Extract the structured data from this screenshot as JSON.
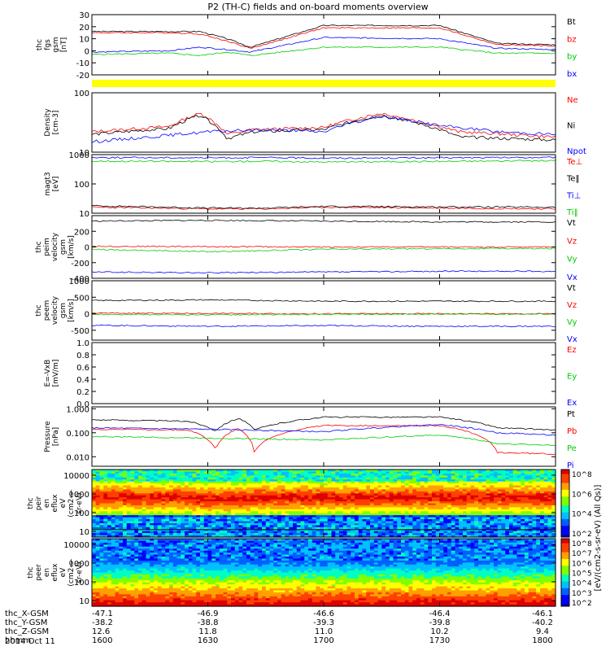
{
  "title": "P2 (TH-C) fields and on-board moments overview",
  "date_label": "2014 Oct 11",
  "colors": {
    "black": "#000000",
    "red": "#ff0000",
    "green": "#00cc00",
    "blue": "#0000ff",
    "yellow": "#ffff00"
  },
  "time_axis": {
    "rows": [
      {
        "label": "thc_X-GSM",
        "values": [
          "-47.1",
          "-46.9",
          "-46.6",
          "-46.4",
          "-46.1"
        ]
      },
      {
        "label": "thc_Y-GSM",
        "values": [
          "-38.2",
          "-38.8",
          "-39.3",
          "-39.8",
          "-40.2"
        ]
      },
      {
        "label": "thc_Z-GSM",
        "values": [
          "12.6",
          "11.8",
          "11.0",
          "10.2",
          "9.4"
        ]
      },
      {
        "label": "hhmm",
        "values": [
          "1600",
          "1630",
          "1700",
          "1730",
          "1800"
        ]
      }
    ]
  },
  "colorbar": {
    "upper": {
      "labels": [
        "10^8",
        "10^6",
        "10^4",
        "10^2"
      ]
    },
    "lower": {
      "labels": [
        "10^8",
        "10^7",
        "10^6",
        "10^5",
        "10^4",
        "10^3",
        "10^2"
      ]
    },
    "title": "[eV/(cm2-s-sr-eV) (All Qs)]"
  },
  "chart_data": [
    {
      "type": "line",
      "ylabel": [
        "thc",
        "fgs",
        "gsm",
        "[nT]"
      ],
      "yticks": [
        "30",
        "20",
        "10",
        "0",
        "-10",
        "-20"
      ],
      "ylim": [
        -20,
        30
      ],
      "legend": [
        "Bt",
        "bz",
        "by",
        "bx"
      ],
      "series": [
        {
          "name": "Bt",
          "color": "#000000",
          "x": [
            "16:00",
            "16:20",
            "16:28",
            "16:35",
            "16:41",
            "17:00",
            "17:30",
            "17:45",
            "18:00"
          ],
          "values": [
            16,
            16,
            16,
            10,
            3,
            21,
            21,
            6,
            5
          ]
        },
        {
          "name": "bz",
          "color": "#ff0000",
          "x": [
            "16:00",
            "16:20",
            "16:28",
            "16:35",
            "16:41",
            "17:00",
            "17:30",
            "17:45",
            "18:00"
          ],
          "values": [
            15,
            15,
            14,
            8,
            2,
            19,
            19,
            5,
            4
          ]
        },
        {
          "name": "by",
          "color": "#00cc00",
          "x": [
            "16:00",
            "16:20",
            "16:28",
            "16:35",
            "16:41",
            "17:00",
            "17:30",
            "17:45",
            "18:00"
          ],
          "values": [
            -3,
            -2,
            -4,
            -1,
            -4,
            3,
            3,
            -2,
            -2
          ]
        },
        {
          "name": "bx",
          "color": "#0000ff",
          "x": [
            "16:00",
            "16:20",
            "16:28",
            "16:35",
            "16:41",
            "17:00",
            "17:30",
            "17:45",
            "18:00"
          ],
          "values": [
            -1,
            0,
            3,
            1,
            -1,
            11,
            10,
            2,
            1
          ]
        }
      ]
    },
    {
      "type": "line",
      "ylabel": [
        "Density",
        "[cm-3]"
      ],
      "yticks": [
        "100",
        "10"
      ],
      "ylim": [
        10,
        100
      ],
      "log": true,
      "legend": [
        "Ne",
        "Ni",
        "Npot"
      ],
      "series": [
        {
          "name": "Ne",
          "color": "#ff0000",
          "x": [
            "16:00",
            "16:20",
            "16:28",
            "16:35",
            "16:42",
            "17:00",
            "17:15",
            "17:25",
            "17:35",
            "18:00"
          ],
          "values": [
            22,
            27,
            45,
            20,
            24,
            26,
            45,
            32,
            22,
            18
          ]
        },
        {
          "name": "Ni",
          "color": "#000000",
          "x": [
            "16:00",
            "16:20",
            "16:28",
            "16:35",
            "16:42",
            "17:00",
            "17:15",
            "17:25",
            "17:35",
            "18:00"
          ],
          "values": [
            20,
            25,
            42,
            17,
            22,
            24,
            42,
            30,
            18,
            16
          ]
        },
        {
          "name": "Npot",
          "color": "#0000ff",
          "x": [
            "16:00",
            "16:15",
            "16:30",
            "16:45",
            "17:00",
            "17:15",
            "17:30",
            "17:45",
            "18:00"
          ],
          "values": [
            15,
            18,
            22,
            24,
            22,
            40,
            28,
            22,
            20
          ]
        }
      ]
    },
    {
      "type": "line",
      "ylabel": [
        "magt3",
        "[eV]"
      ],
      "yticks": [
        "1000",
        "100",
        "10"
      ],
      "ylim": [
        10,
        1000
      ],
      "log": true,
      "legend": [
        "Te⊥",
        "Te‖",
        "Ti⊥",
        "Ti‖"
      ],
      "series": [
        {
          "name": "Te⊥",
          "color": "#ff0000",
          "x": [
            "16:00",
            "16:30",
            "16:45",
            "17:00",
            "18:00"
          ],
          "values": [
            16,
            14,
            14,
            16,
            14
          ]
        },
        {
          "name": "Te‖",
          "color": "#000000",
          "x": [
            "16:00",
            "16:30",
            "16:45",
            "17:00",
            "18:00"
          ],
          "values": [
            18,
            15,
            15,
            17,
            16
          ]
        },
        {
          "name": "Ti⊥",
          "color": "#0000ff",
          "x": [
            "16:00",
            "16:30",
            "16:45",
            "17:00",
            "18:00"
          ],
          "values": [
            800,
            780,
            790,
            760,
            800
          ]
        },
        {
          "name": "Ti‖",
          "color": "#00cc00",
          "x": [
            "16:00",
            "16:30",
            "16:45",
            "17:00",
            "18:00"
          ],
          "values": [
            600,
            580,
            600,
            560,
            620
          ]
        }
      ]
    },
    {
      "type": "line",
      "ylabel": [
        "thc",
        "peim",
        "velocity",
        "gsm",
        "[km/s]"
      ],
      "yticks": [
        "200",
        "0",
        "-200",
        "-400"
      ],
      "ylim": [
        -400,
        400
      ],
      "legend": [
        "Vt",
        "Vz",
        "Vy",
        "Vx"
      ],
      "series": [
        {
          "name": "Vt",
          "color": "#000000",
          "x": [
            "16:00",
            "16:30",
            "17:00",
            "17:30",
            "18:00"
          ],
          "values": [
            330,
            340,
            330,
            320,
            320
          ]
        },
        {
          "name": "Vz",
          "color": "#ff0000",
          "x": [
            "16:00",
            "16:30",
            "17:00",
            "17:30",
            "18:00"
          ],
          "values": [
            10,
            5,
            0,
            0,
            0
          ]
        },
        {
          "name": "Vy",
          "color": "#00cc00",
          "x": [
            "16:00",
            "16:30",
            "17:00",
            "17:30",
            "18:00"
          ],
          "values": [
            -30,
            -60,
            -30,
            -20,
            -20
          ]
        },
        {
          "name": "Vx",
          "color": "#0000ff",
          "x": [
            "16:00",
            "16:30",
            "17:00",
            "17:30",
            "18:00"
          ],
          "values": [
            -320,
            -330,
            -320,
            -310,
            -310
          ]
        }
      ]
    },
    {
      "type": "line",
      "ylabel": [
        "thc",
        "peem",
        "velocity",
        "gsm",
        "[km/s]"
      ],
      "yticks": [
        "1000",
        "500",
        "0",
        "-500"
      ],
      "ylim": [
        -800,
        1000
      ],
      "legend": [
        "Vt",
        "Vz",
        "Vy",
        "Vx"
      ],
      "series": [
        {
          "name": "Vt",
          "color": "#000000",
          "x": [
            "16:00",
            "16:30",
            "17:00",
            "17:30",
            "18:00"
          ],
          "values": [
            400,
            420,
            380,
            380,
            380
          ]
        },
        {
          "name": "Vz",
          "color": "#ff0000",
          "x": [
            "16:00",
            "16:30",
            "17:00",
            "17:30",
            "18:00"
          ],
          "values": [
            20,
            10,
            0,
            0,
            0
          ]
        },
        {
          "name": "Vy",
          "color": "#00cc00",
          "x": [
            "16:00",
            "16:30",
            "17:00",
            "17:30",
            "18:00"
          ],
          "values": [
            -20,
            -30,
            -20,
            -10,
            -10
          ]
        },
        {
          "name": "Vx",
          "color": "#0000ff",
          "x": [
            "16:00",
            "16:30",
            "17:00",
            "17:30",
            "18:00"
          ],
          "values": [
            -350,
            -380,
            -360,
            -380,
            -380
          ]
        }
      ]
    },
    {
      "type": "line",
      "ylabel": [
        "E=-VxB",
        "[mV/m]"
      ],
      "yticks": [
        "1.0",
        "0.8",
        "0.6",
        "0.4",
        "0.2",
        "0.0"
      ],
      "ylim": [
        0,
        1
      ],
      "legend": [
        "Ez",
        "Ey",
        "Ex"
      ],
      "series": []
    },
    {
      "type": "line",
      "ylabel": [
        "Pressure",
        "[nPa]"
      ],
      "yticks": [
        "1.000",
        "0.100",
        "0.010"
      ],
      "ylim": [
        0.004,
        1.2
      ],
      "log": true,
      "legend": [
        "Pt",
        "Pb",
        "Pe",
        "Pi"
      ],
      "series": [
        {
          "name": "Pt",
          "color": "#000000",
          "x": [
            "16:00",
            "16:25",
            "16:32",
            "16:38",
            "16:42",
            "17:00",
            "17:30",
            "17:45",
            "18:00"
          ],
          "values": [
            0.35,
            0.3,
            0.12,
            0.4,
            0.13,
            0.45,
            0.45,
            0.16,
            0.13
          ]
        },
        {
          "name": "Pb",
          "color": "#ff0000",
          "x": [
            "16:00",
            "16:25",
            "16:32",
            "16:38",
            "16:42",
            "17:00",
            "17:30",
            "17:45",
            "18:00"
          ],
          "values": [
            0.14,
            0.13,
            0.02,
            0.15,
            0.016,
            0.2,
            0.2,
            0.015,
            0.013
          ]
        },
        {
          "name": "Pe",
          "color": "#00cc00",
          "x": [
            "16:00",
            "16:30",
            "17:00",
            "17:30",
            "17:45",
            "18:00"
          ],
          "values": [
            0.07,
            0.06,
            0.05,
            0.08,
            0.035,
            0.03
          ]
        },
        {
          "name": "Pi",
          "color": "#0000ff",
          "x": [
            "16:00",
            "16:30",
            "17:00",
            "17:30",
            "17:45",
            "18:00"
          ],
          "values": [
            0.16,
            0.14,
            0.11,
            0.22,
            0.1,
            0.08
          ]
        }
      ]
    },
    {
      "type": "heatmap",
      "ylabel": [
        "thc",
        "peir",
        "en",
        "eflux",
        "eV",
        "(cm2-s-",
        "sr-eV)"
      ],
      "yticks": [
        "10000",
        "1000",
        "100",
        "10"
      ],
      "ylim": [
        5,
        20000
      ]
    },
    {
      "type": "heatmap",
      "ylabel": [
        "thc",
        "peer",
        "en",
        "eflux",
        "eV",
        "(cm2-s-",
        "sr-eV)"
      ],
      "yticks": [
        "10000",
        "1000",
        "100",
        "10"
      ],
      "ylim": [
        5,
        20000
      ]
    }
  ]
}
